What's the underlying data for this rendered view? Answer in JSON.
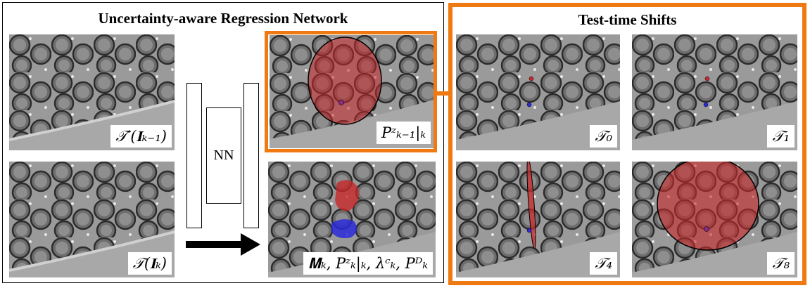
{
  "left_box_title": "Uncertainty-aware Regression Network",
  "right_box_title": "Test-time Shifts",
  "network_label": "NN",
  "colors": {
    "frame_orange": "#f07a12",
    "ellipse_red": "#c8282a",
    "blob_blue": "#2a2ad8",
    "box_border": "#000000"
  },
  "inputs": [
    {
      "id": "prev-frame",
      "label": "𝒯′(𝐈ₖ₋₁)"
    },
    {
      "id": "curr-frame",
      "label": "𝒯(𝐈ₖ)"
    }
  ],
  "outputs": [
    {
      "id": "prediction-prior",
      "label": "Pᶻₖ₋₁|ₖ"
    },
    {
      "id": "prediction-map",
      "label": "𝐌ₖ, Pᶻₖ|ₖ, λᶜₖ, Pᴰₖ"
    }
  ],
  "shifts": [
    {
      "id": "t0",
      "label": "𝒯₀"
    },
    {
      "id": "t1",
      "label": "𝒯₁"
    },
    {
      "id": "t4",
      "label": "𝒯₄"
    },
    {
      "id": "t8",
      "label": "𝒯₈"
    }
  ]
}
